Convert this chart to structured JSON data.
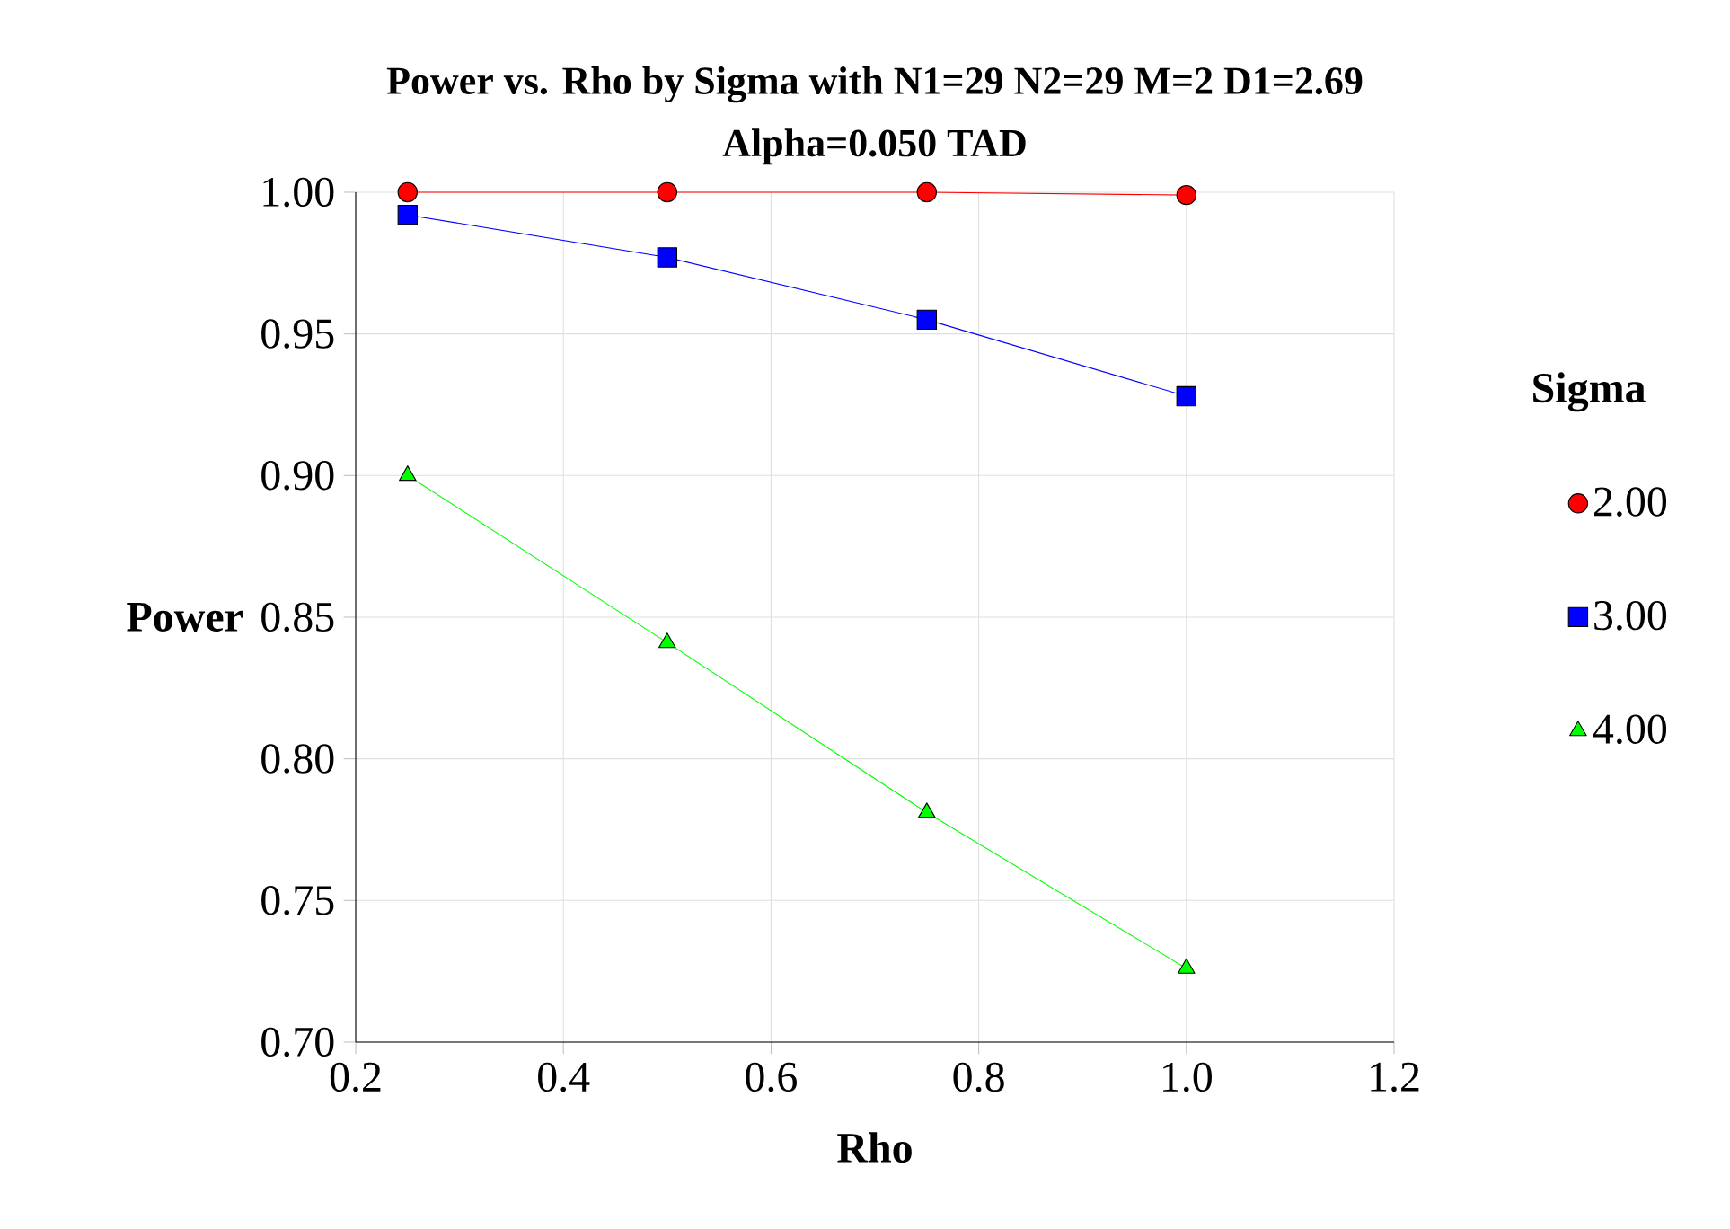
{
  "chart_data": {
    "type": "line",
    "title": "Power vs. Rho by Sigma with N1=29 N2=29 M=2 D1=2.69\nAlpha=0.050 TAD",
    "xlabel": "Rho",
    "ylabel": "Power",
    "legend_title": "Sigma",
    "legend": "right",
    "grid": true,
    "x": [
      0.25,
      0.5,
      0.75,
      1.0
    ],
    "xlim": [
      0.2,
      1.2
    ],
    "xticks": [
      {
        "value": 0.2,
        "label": "0.2"
      },
      {
        "value": 0.4,
        "label": "0.4"
      },
      {
        "value": 0.6,
        "label": "0.6"
      },
      {
        "value": 0.8,
        "label": "0.8"
      },
      {
        "value": 1.0,
        "label": "1.0"
      },
      {
        "value": 1.2,
        "label": "1.2"
      }
    ],
    "ylim": [
      0.7,
      1.0
    ],
    "yticks": [
      {
        "value": 0.7,
        "label": "0.70"
      },
      {
        "value": 0.75,
        "label": "0.75"
      },
      {
        "value": 0.8,
        "label": "0.80"
      },
      {
        "value": 0.85,
        "label": "0.85"
      },
      {
        "value": 0.9,
        "label": "0.90"
      },
      {
        "value": 0.95,
        "label": "0.95"
      },
      {
        "value": 1.0,
        "label": "1.00"
      }
    ],
    "series": [
      {
        "name": "2.00",
        "color": "#ff0000",
        "marker": "circle",
        "values": [
          1.0,
          1.0,
          1.0,
          0.999
        ]
      },
      {
        "name": "3.00",
        "color": "#0000ff",
        "marker": "square",
        "values": [
          0.992,
          0.977,
          0.955,
          0.928
        ]
      },
      {
        "name": "4.00",
        "color": "#00ff00",
        "marker": "triangle",
        "values": [
          0.9,
          0.841,
          0.781,
          0.726
        ]
      }
    ]
  }
}
